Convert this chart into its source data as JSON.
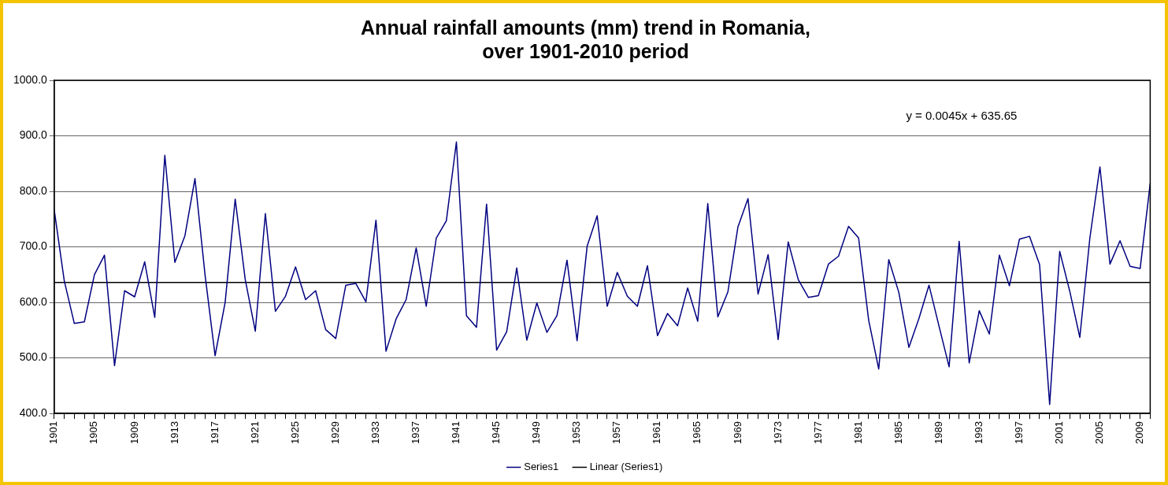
{
  "chart_data": {
    "type": "line",
    "title": "Annual rainfall amounts (mm) trend in Romania,\nover 1901-2010 period",
    "categories": [
      "1901",
      null,
      null,
      null,
      "1905",
      null,
      null,
      null,
      "1909",
      null,
      null,
      null,
      "1913",
      null,
      null,
      null,
      "1917",
      null,
      null,
      null,
      "1921",
      null,
      null,
      null,
      "1925",
      null,
      null,
      null,
      "1929",
      null,
      null,
      null,
      "1933",
      null,
      null,
      null,
      "1937",
      null,
      null,
      null,
      "1941",
      null,
      null,
      null,
      "1945",
      null,
      null,
      null,
      "1949",
      null,
      null,
      null,
      "1953",
      null,
      null,
      null,
      "1957",
      null,
      null,
      null,
      "1961",
      null,
      null,
      null,
      "1965",
      null,
      null,
      null,
      "1969",
      null,
      null,
      null,
      "1973",
      null,
      null,
      null,
      "1977",
      null,
      null,
      null,
      "1981",
      null,
      null,
      null,
      "1985",
      null,
      null,
      null,
      "1989",
      null,
      null,
      null,
      "1993",
      null,
      null,
      null,
      "1997",
      null,
      null,
      null,
      "2001",
      null,
      null,
      null,
      "2005",
      null,
      null,
      null,
      "2009",
      null
    ],
    "series": [
      {
        "name": "Series1",
        "color": "#000080",
        "values": [
          767,
          639,
          562,
          565,
          650,
          685,
          486,
          621,
          610,
          673,
          573,
          865,
          672,
          720,
          823,
          650,
          504,
          600,
          786,
          641,
          548,
          760,
          584,
          611,
          664,
          605,
          621,
          551,
          535,
          631,
          634,
          601,
          748,
          512,
          570,
          605,
          698,
          593,
          716,
          747,
          889,
          576,
          555,
          777,
          514,
          547,
          662,
          532,
          599,
          546,
          576,
          676,
          531,
          701,
          756,
          593,
          654,
          611,
          593,
          666,
          540,
          580,
          558,
          626,
          566,
          778,
          574,
          619,
          736,
          787,
          615,
          686,
          533,
          709,
          641,
          609,
          612,
          669,
          683,
          737,
          716,
          568,
          480,
          677,
          618,
          519,
          571,
          631,
          557,
          484,
          710,
          491,
          585,
          543,
          685,
          630,
          714,
          719,
          668,
          416,
          692,
          620,
          537,
          716,
          844,
          669,
          711,
          665,
          661,
          814
        ]
      },
      {
        "name": "Linear (Series1)",
        "color": "#000000",
        "type": "line",
        "values": [
          636,
          null,
          null,
          null,
          null,
          null,
          null,
          null,
          null,
          null,
          null,
          null,
          null,
          null,
          null,
          null,
          null,
          null,
          null,
          null,
          null,
          null,
          null,
          null,
          null,
          null,
          null,
          null,
          null,
          null,
          null,
          null,
          null,
          null,
          null,
          null,
          null,
          null,
          null,
          null,
          null,
          null,
          null,
          null,
          null,
          null,
          null,
          null,
          null,
          null,
          null,
          null,
          null,
          null,
          null,
          null,
          null,
          null,
          null,
          null,
          null,
          null,
          null,
          null,
          null,
          null,
          null,
          null,
          null,
          null,
          null,
          null,
          null,
          null,
          null,
          null,
          null,
          null,
          null,
          null,
          null,
          null,
          null,
          null,
          null,
          null,
          null,
          null,
          null,
          null,
          null,
          null,
          null,
          null,
          null,
          null,
          null,
          null,
          null,
          null,
          null,
          null,
          null,
          null,
          null,
          null,
          null,
          null,
          null,
          636
        ]
      }
    ],
    "ylim": [
      400,
      1000
    ],
    "yticks": [
      {
        "value": 400,
        "label": "400.0"
      },
      {
        "value": 500,
        "label": "500.0"
      },
      {
        "value": 600,
        "label": "600.0"
      },
      {
        "value": 700,
        "label": "700.0"
      },
      {
        "value": 800,
        "label": "800.0"
      },
      {
        "value": 900,
        "label": "900.0"
      },
      {
        "value": 1000,
        "label": "1000.0"
      }
    ],
    "grid": "y",
    "legend": "bottom",
    "marker": "none",
    "line_style": "solid",
    "annotations": [
      "y = 0.0045x + 635.65"
    ]
  }
}
